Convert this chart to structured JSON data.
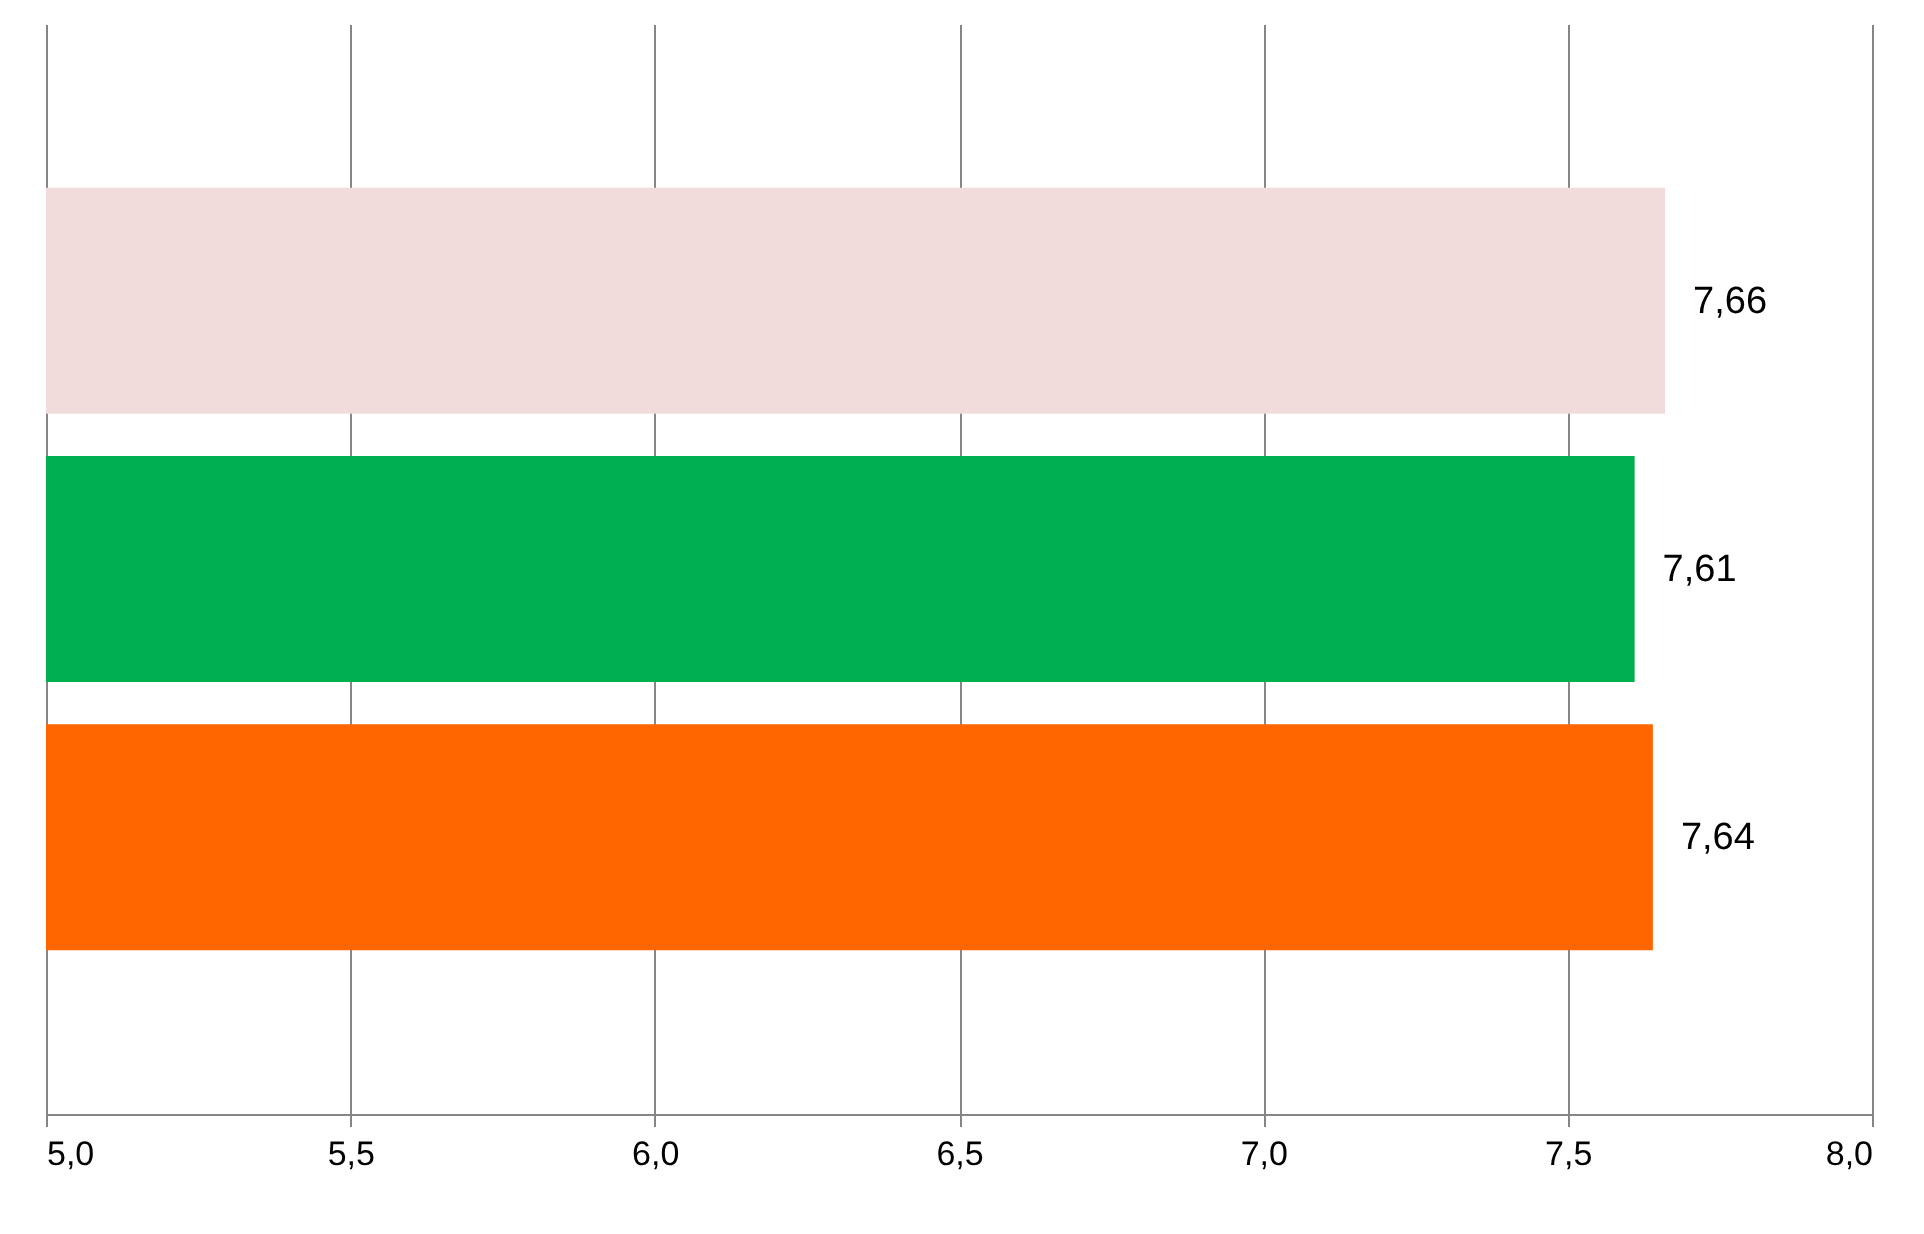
{
  "chart_data": {
    "type": "bar",
    "orientation": "horizontal",
    "categories": [
      null,
      null,
      null
    ],
    "values": [
      7.66,
      7.61,
      7.64
    ],
    "colors": [
      "#f2dcdb",
      "#00b050",
      "#ff6600"
    ],
    "value_labels": [
      "7,66",
      "7,61",
      "7,64"
    ],
    "xlim": [
      5,
      8
    ],
    "xticks": [
      {
        "value": 5,
        "label": "5,0"
      },
      {
        "value": 5.5,
        "label": "5,5"
      },
      {
        "value": 6,
        "label": "6,0"
      },
      {
        "value": 6.5,
        "label": "6,5"
      },
      {
        "value": 7,
        "label": "7,0"
      },
      {
        "value": 7.5,
        "label": "7,5"
      },
      {
        "value": 8,
        "label": "8,0"
      }
    ],
    "grid": "x",
    "legend": false
  }
}
